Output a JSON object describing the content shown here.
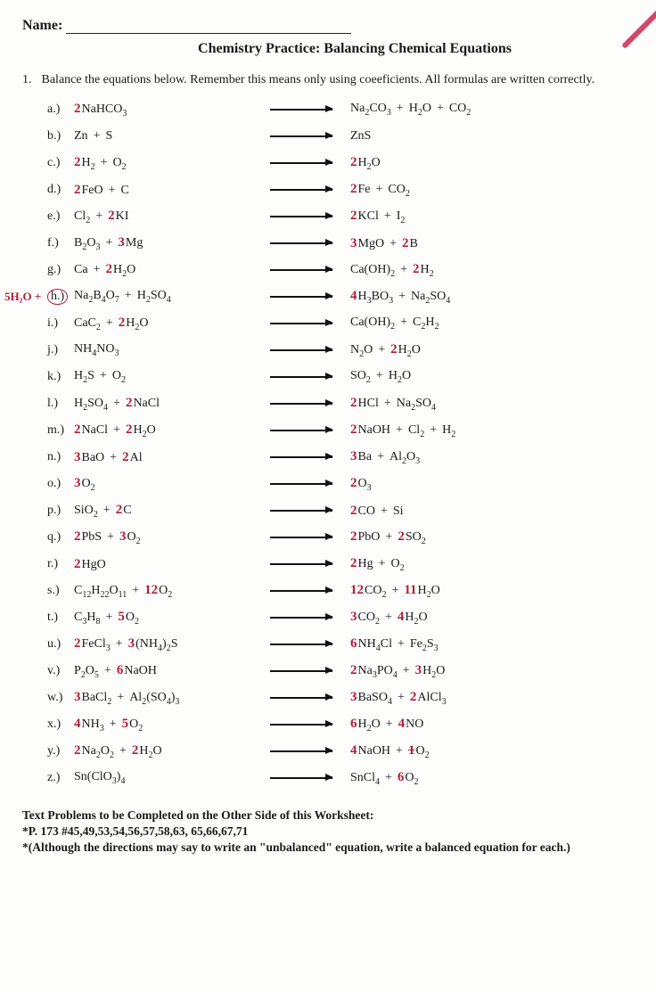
{
  "header": {
    "name_label": "Name:",
    "title": "Chemistry Practice: Balancing Chemical Equations"
  },
  "instruction": {
    "num": "1.",
    "text": "Balance the equations below.  Remember this means only using coeeficients.  All formulas are written correctly."
  },
  "colors": {
    "handwriting": "#b11e3a",
    "print": "#1a1a1a"
  },
  "rows": [
    {
      "letter": "a.)",
      "lhs": [
        {
          "c": "2",
          "t": "NaHCO",
          "s": "3"
        }
      ],
      "rhs": [
        {
          "t": "Na",
          "s": "2"
        },
        {
          "t": "CO",
          "s": "3"
        },
        {
          "p": "+"
        },
        {
          "t": "H",
          "s": "2"
        },
        {
          "t": "O"
        },
        {
          "p": "+"
        },
        {
          "t": "CO",
          "s": "2"
        }
      ]
    },
    {
      "letter": "b.)",
      "lhs": [
        {
          "t": "Zn"
        },
        {
          "p": "+"
        },
        {
          "t": "S"
        }
      ],
      "rhs": [
        {
          "t": "ZnS"
        }
      ]
    },
    {
      "letter": "c.)",
      "lhs": [
        {
          "c": "2",
          "t": "H",
          "s": "2"
        },
        {
          "p": "+"
        },
        {
          "t": "O",
          "s": "2"
        }
      ],
      "rhs": [
        {
          "c": "2",
          "t": "H",
          "s": "2"
        },
        {
          "t": "O"
        }
      ]
    },
    {
      "letter": "d.)",
      "lhs": [
        {
          "c": "2",
          "t": "FeO"
        },
        {
          "p": "+"
        },
        {
          "t": "C"
        }
      ],
      "rhs": [
        {
          "c": "2",
          "t": "Fe"
        },
        {
          "p": "+"
        },
        {
          "t": "CO",
          "s": "2"
        }
      ]
    },
    {
      "letter": "e.)",
      "lhs": [
        {
          "t": "Cl",
          "s": "2"
        },
        {
          "p": "+"
        },
        {
          "c": "2",
          "t": "KI"
        }
      ],
      "rhs": [
        {
          "c": "2",
          "t": "KCl"
        },
        {
          "p": "+"
        },
        {
          "t": "I",
          "s": "2"
        }
      ]
    },
    {
      "letter": "f.)",
      "lhs": [
        {
          "t": "B",
          "s": "2"
        },
        {
          "t": "O",
          "s": "3"
        },
        {
          "p": "+"
        },
        {
          "c": "3",
          "t": "Mg"
        }
      ],
      "rhs": [
        {
          "c": "3",
          "t": "MgO"
        },
        {
          "p": "+"
        },
        {
          "c": "2",
          "t": "B"
        }
      ]
    },
    {
      "letter": "g.)",
      "lhs": [
        {
          "t": "Ca"
        },
        {
          "p": "+"
        },
        {
          "c": "2",
          "t": "H",
          "s": "2"
        },
        {
          "t": "O"
        }
      ],
      "rhs": [
        {
          "t": "Ca(OH)",
          "s": "2"
        },
        {
          "p": "+"
        },
        {
          "c": "2",
          "t": "H",
          "s": "2"
        }
      ]
    },
    {
      "letter": "h.)",
      "circled": true,
      "margin": "5H₂O +",
      "lhs": [
        {
          "t": "Na",
          "s": "2"
        },
        {
          "t": "B",
          "s": "4"
        },
        {
          "t": "O",
          "s": "7"
        },
        {
          "p": "+"
        },
        {
          "t": "H",
          "s": "2"
        },
        {
          "t": "SO",
          "s": "4"
        }
      ],
      "rhs": [
        {
          "c": "4",
          "t": "H",
          "s": "3"
        },
        {
          "t": "BO",
          "s": "3"
        },
        {
          "p": "+"
        },
        {
          "t": "Na",
          "s": "2"
        },
        {
          "t": "SO",
          "s": "4"
        }
      ]
    },
    {
      "letter": "i.)",
      "lhs": [
        {
          "t": "CaC",
          "s": "2"
        },
        {
          "p": "+"
        },
        {
          "c": "2",
          "t": "H",
          "s": "2"
        },
        {
          "t": "O"
        }
      ],
      "rhs": [
        {
          "t": "Ca(OH)",
          "s": "2"
        },
        {
          "p": "+"
        },
        {
          "t": "C",
          "s": "2"
        },
        {
          "t": "H",
          "s": "2"
        }
      ]
    },
    {
      "letter": "j.)",
      "lhs": [
        {
          "t": "NH",
          "s": "4"
        },
        {
          "t": "NO",
          "s": "3"
        }
      ],
      "rhs": [
        {
          "t": "N",
          "s": "2"
        },
        {
          "t": "O"
        },
        {
          "p": "+"
        },
        {
          "c": "2",
          "t": "H",
          "s": "2"
        },
        {
          "t": "O"
        }
      ]
    },
    {
      "letter": "k.)",
      "lhs": [
        {
          "t": "H",
          "s": "2"
        },
        {
          "t": "S"
        },
        {
          "p": "+"
        },
        {
          "t": "O",
          "s": "2"
        }
      ],
      "rhs": [
        {
          "t": "SO",
          "s": "2"
        },
        {
          "p": "+"
        },
        {
          "t": "H",
          "s": "2"
        },
        {
          "t": "O"
        }
      ]
    },
    {
      "letter": "l.)",
      "lhs": [
        {
          "t": "H",
          "s": "2"
        },
        {
          "t": "SO",
          "s": "4"
        },
        {
          "p": "+"
        },
        {
          "c": "2",
          "t": "NaCl"
        }
      ],
      "rhs": [
        {
          "c": "2",
          "t": "HCl"
        },
        {
          "p": "+"
        },
        {
          "t": "Na",
          "s": "2"
        },
        {
          "t": "SO",
          "s": "4"
        }
      ]
    },
    {
      "letter": "m.)",
      "lhs": [
        {
          "c": "2",
          "t": "NaCl"
        },
        {
          "p": "+"
        },
        {
          "c": "2",
          "t": "H",
          "s": "2"
        },
        {
          "t": "O"
        }
      ],
      "rhs": [
        {
          "c": "2",
          "t": "NaOH"
        },
        {
          "p": "+"
        },
        {
          "t": "Cl",
          "s": "2"
        },
        {
          "p": "+"
        },
        {
          "t": "H",
          "s": "2"
        }
      ]
    },
    {
      "letter": "n.)",
      "lhs": [
        {
          "c": "3",
          "t": "BaO"
        },
        {
          "p": "+"
        },
        {
          "c": "2",
          "t": "Al"
        }
      ],
      "rhs": [
        {
          "c": "3",
          "t": "Ba"
        },
        {
          "p": "+"
        },
        {
          "t": "Al",
          "s": "2"
        },
        {
          "t": "O",
          "s": "3"
        }
      ]
    },
    {
      "letter": "o.)",
      "lhs": [
        {
          "c": "3",
          "t": "O",
          "s": "2"
        }
      ],
      "rhs": [
        {
          "c": "2",
          "t": "O",
          "s": "3"
        }
      ]
    },
    {
      "letter": "p.)",
      "lhs": [
        {
          "t": "SiO",
          "s": "2"
        },
        {
          "p": "+"
        },
        {
          "c": "2",
          "t": "C"
        }
      ],
      "rhs": [
        {
          "c": "2",
          "t": "CO"
        },
        {
          "p": "+"
        },
        {
          "t": "Si"
        }
      ]
    },
    {
      "letter": "q.)",
      "lhs": [
        {
          "c": "2",
          "t": "PbS"
        },
        {
          "p": "+"
        },
        {
          "c": "3",
          "t": "O",
          "s": "2"
        }
      ],
      "rhs": [
        {
          "c": "2",
          "t": "PbO"
        },
        {
          "p": "+"
        },
        {
          "c": "2",
          "t": "SO",
          "s": "2"
        }
      ]
    },
    {
      "letter": "r.)",
      "lhs": [
        {
          "c": "2",
          "t": "HgO"
        }
      ],
      "rhs": [
        {
          "c": "2",
          "t": "Hg"
        },
        {
          "p": "+"
        },
        {
          "t": "O",
          "s": "2"
        }
      ]
    },
    {
      "letter": "s.)",
      "lhs": [
        {
          "t": "C",
          "s": "12"
        },
        {
          "t": "H",
          "s": "22"
        },
        {
          "t": "O",
          "s": "11"
        },
        {
          "p": "+"
        },
        {
          "c": "12",
          "t": "O",
          "s": "2"
        }
      ],
      "rhs": [
        {
          "c": "12",
          "t": "CO",
          "s": "2"
        },
        {
          "p": "+"
        },
        {
          "c": "11",
          "t": "H",
          "s": "2"
        },
        {
          "t": "O"
        }
      ]
    },
    {
      "letter": "t.)",
      "lhs": [
        {
          "t": "C",
          "s": "3"
        },
        {
          "t": "H",
          "s": "8"
        },
        {
          "p": "+"
        },
        {
          "c": "5",
          "t": "O",
          "s": "2"
        }
      ],
      "rhs": [
        {
          "c": "3",
          "t": "CO",
          "s": "2"
        },
        {
          "p": "+"
        },
        {
          "c": "4",
          "t": "H",
          "s": "2"
        },
        {
          "t": "O"
        }
      ]
    },
    {
      "letter": "u.)",
      "lhs": [
        {
          "c": "2",
          "t": "FeCl",
          "s": "3"
        },
        {
          "p": "+"
        },
        {
          "c": "3",
          "t": "(NH",
          "s": "4"
        },
        {
          "t": ")",
          "s": "2"
        },
        {
          "t": "S"
        }
      ],
      "rhs": [
        {
          "c": "6",
          "t": "NH",
          "s": "4"
        },
        {
          "t": "Cl"
        },
        {
          "p": "+"
        },
        {
          "t": "Fe",
          "s": "2"
        },
        {
          "t": "S",
          "s": "3"
        }
      ]
    },
    {
      "letter": "v.)",
      "lhs": [
        {
          "t": "P",
          "s": "2"
        },
        {
          "t": "O",
          "s": "5"
        },
        {
          "p": "+"
        },
        {
          "c": "6",
          "t": "NaOH"
        }
      ],
      "rhs": [
        {
          "c": "2",
          "t": "Na",
          "s": "3"
        },
        {
          "t": "PO",
          "s": "4"
        },
        {
          "p": "+"
        },
        {
          "c": "3",
          "t": "H",
          "s": "2"
        },
        {
          "t": "O"
        }
      ]
    },
    {
      "letter": "w.)",
      "lhs": [
        {
          "c": "3",
          "t": "BaCl",
          "s": "2"
        },
        {
          "p": "+"
        },
        {
          "t": "Al",
          "s": "2"
        },
        {
          "t": "(SO",
          "s": "4"
        },
        {
          "t": ")",
          "s": "3"
        }
      ],
      "rhs": [
        {
          "c": "3",
          "t": "BaSO",
          "s": "4"
        },
        {
          "p": "+"
        },
        {
          "c": "2",
          "t": "AlCl",
          "s": "3"
        }
      ]
    },
    {
      "letter": "x.)",
      "lhs": [
        {
          "c": "4",
          "t": "NH",
          "s": "3"
        },
        {
          "p": "+"
        },
        {
          "c": "5",
          "t": "O",
          "s": "2"
        }
      ],
      "rhs": [
        {
          "c": "6",
          "t": "H",
          "s": "2"
        },
        {
          "t": "O"
        },
        {
          "p": "+"
        },
        {
          "c": "4",
          "t": "NO"
        }
      ]
    },
    {
      "letter": "y.)",
      "lhs": [
        {
          "c": "2",
          "t": "Na",
          "s": "2"
        },
        {
          "t": "O",
          "s": "2"
        },
        {
          "p": "+"
        },
        {
          "c": "2",
          "t": "H",
          "s": "2"
        },
        {
          "t": "O"
        }
      ],
      "rhs": [
        {
          "c": "4",
          "t": "NaOH"
        },
        {
          "p": "+"
        },
        {
          "c": "1",
          "t": "O",
          "s": "2",
          "scratched": true
        }
      ]
    },
    {
      "letter": "z.)",
      "lhs": [
        {
          "t": "Sn(ClO",
          "s": "3"
        },
        {
          "t": ")",
          "s": "4"
        }
      ],
      "rhs": [
        {
          "t": "SnCl",
          "s": "4"
        },
        {
          "p": "+"
        },
        {
          "c": "6",
          "t": "O",
          "s": "2"
        }
      ]
    }
  ],
  "footer": {
    "line1": "Text Problems to be Completed on the Other Side of this Worksheet:",
    "line2": "*P. 173 #45,49,53,54,56,57,58,63, 65,66,67,71",
    "line3": "*(Although the directions may say to write an \"unbalanced\" equation, write a balanced equation for each.)"
  }
}
